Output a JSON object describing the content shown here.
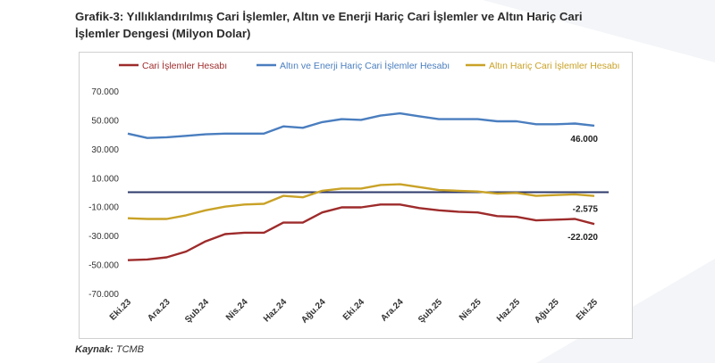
{
  "title": "Grafik-3: Yıllıklandırılmış Cari İşlemler, Altın ve Enerji Hariç Cari İşlemler ve Altın Hariç Cari İşlemler Dengesi (Milyon Dolar)",
  "source_label": "Kaynak:",
  "source_value": "TCMB",
  "colors": {
    "cari": "#9e2b2b",
    "enerji": "#4a7ebf",
    "altin": "#c9a227",
    "zero": "#2e3a6b"
  },
  "chart_data": {
    "type": "line",
    "title": "Grafik-3: Yıllıklandırılmış Cari İşlemler, Altın ve Enerji Hariç Cari İşlemler ve Altın Hariç Cari İşlemler Dengesi (Milyon Dolar)",
    "xlabel": "",
    "ylabel": "",
    "ylim": [
      -70000,
      70000
    ],
    "yticks": [
      70000,
      50000,
      30000,
      10000,
      -10000,
      -30000,
      -50000,
      -70000
    ],
    "ytick_labels": [
      "70.000",
      "50.000",
      "30.000",
      "10.000",
      "-10.000",
      "-30.000",
      "-50.000",
      "-70.000"
    ],
    "x": [
      "Eki.23",
      "Kas.23",
      "Ara.23",
      "Oca.24",
      "Şub.24",
      "Mar.24",
      "Nis.24",
      "May.24",
      "Haz.24",
      "Tem.24",
      "Ağu.24",
      "Eyl.24",
      "Eki.24",
      "Kas.24",
      "Ara.24",
      "Oca.25",
      "Şub.25",
      "Mar.25",
      "Nis.25",
      "May.25",
      "Haz.25",
      "Tem.25",
      "Ağu.25",
      "Eyl.25",
      "Eki.25"
    ],
    "xtick_labels": [
      "Eki.23",
      "Ara.23",
      "Şub.24",
      "Nis.24",
      "Haz.24",
      "Ağu.24",
      "Eki.24",
      "Ara.24",
      "Şub.25",
      "Nis.25",
      "Haz.25",
      "Ağu.25",
      "Eki.25"
    ],
    "legend_position": "top",
    "grid": false,
    "series": [
      {
        "name": "Cari İşlemler Hesabı",
        "color": "#9e2b2b",
        "values": [
          -47000,
          -46500,
          -45000,
          -41000,
          -34000,
          -29000,
          -28000,
          -28000,
          -21000,
          -21000,
          -14000,
          -10500,
          -10500,
          -8500,
          -8500,
          -11000,
          -12500,
          -13500,
          -14000,
          -16500,
          -17000,
          -19500,
          -19000,
          -18500,
          -22020
        ],
        "end_label": "-22.020"
      },
      {
        "name": "Altın ve Enerji Hariç Cari İşlemler Hesabı",
        "color": "#4a7ebf",
        "values": [
          40500,
          37500,
          38000,
          39000,
          40000,
          40500,
          40500,
          40500,
          45500,
          44500,
          48500,
          50500,
          50000,
          53000,
          54500,
          52500,
          50500,
          50500,
          50500,
          49000,
          49000,
          47000,
          47000,
          47500,
          46000
        ],
        "end_label": "46.000"
      },
      {
        "name": "Altın Hariç Cari İşlemler Hesabı",
        "color": "#c9a227",
        "values": [
          -18000,
          -18500,
          -18500,
          -16000,
          -12500,
          -10000,
          -8500,
          -8000,
          -2500,
          -3500,
          1000,
          2500,
          2500,
          5000,
          5500,
          3500,
          1500,
          1000,
          500,
          -1000,
          -500,
          -2500,
          -2000,
          -1500,
          -2575
        ],
        "end_label": "-2.575"
      }
    ]
  }
}
